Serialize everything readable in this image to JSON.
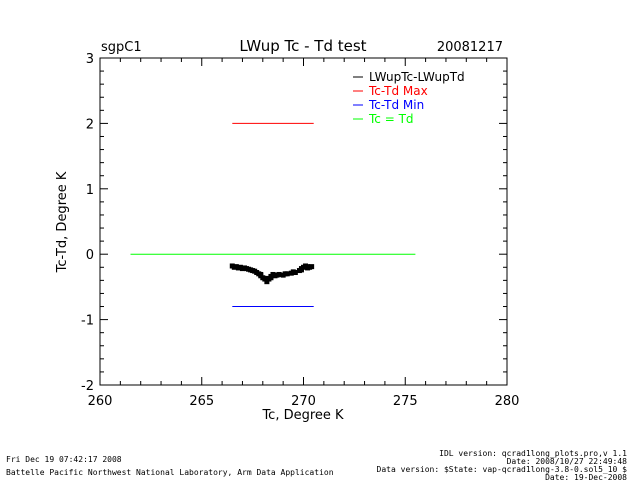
{
  "header": {
    "site": "sgpC1",
    "date": "20081217"
  },
  "footer": {
    "left_line1": "Fri Dec 19 07:42:17 2008",
    "left_line2": "Battelle Pacific Northwest National Laboratory, Arm Data Application",
    "right_line1": "IDL version: qcrad1long_plots.pro,v 1.1",
    "right_line2": "Date: 2008/10/27 22:49:48",
    "right_line3": "Data version: $State: vap-qcrad1long-3.8-0.sol5_10 $",
    "right_line4": "Date: 19-Dec-2008"
  },
  "colors": {
    "axes": "#000000",
    "data": "#000000",
    "max": "#ff0000",
    "min": "#0000ff",
    "equal": "#00ff00"
  },
  "chart_data": {
    "type": "scatter",
    "title": "LWup Tc - Td test",
    "xlabel": "Tc, Degree K",
    "ylabel": "Tc-Td, Degree K",
    "xlim": [
      260,
      280
    ],
    "ylim": [
      -2,
      3
    ],
    "x_ticks": [
      260,
      265,
      270,
      275,
      280
    ],
    "y_ticks": [
      -2,
      -1,
      0,
      1,
      2,
      3
    ],
    "legend": [
      {
        "label": "LWupTc-LWupTd",
        "color": "#000000"
      },
      {
        "label": "Tc-Td Max",
        "color": "#ff0000"
      },
      {
        "label": "Tc-Td Min",
        "color": "#0000ff"
      },
      {
        "label": "Tc = Td",
        "color": "#00ff00"
      }
    ],
    "series": [
      {
        "name": "Tc-Td Max",
        "type": "line",
        "color": "#ff0000",
        "x": [
          266.5,
          268.0,
          268.2,
          270.5
        ],
        "y": [
          2.0,
          2.0,
          2.0,
          2.0
        ]
      },
      {
        "name": "Tc-Td Min",
        "type": "line",
        "color": "#0000ff",
        "x": [
          266.5,
          268.0,
          268.2,
          270.5
        ],
        "y": [
          -0.8,
          -0.8,
          -0.8,
          -0.8
        ]
      },
      {
        "name": "Tc = Td",
        "type": "line",
        "color": "#00ff00",
        "x": [
          261.5,
          275.5
        ],
        "y": [
          0,
          0
        ]
      },
      {
        "name": "LWupTc-LWupTd",
        "type": "scatter",
        "color": "#000000",
        "x": [
          266.5,
          266.7,
          266.9,
          267.1,
          267.3,
          267.5,
          267.7,
          267.8,
          267.9,
          268.0,
          268.1,
          268.2,
          268.3,
          268.4,
          268.5,
          268.6,
          268.8,
          269.0,
          269.2,
          269.4,
          269.6,
          269.8,
          269.9,
          270.0,
          270.1,
          270.2,
          270.3,
          270.4,
          266.6,
          266.8,
          267.0,
          267.2,
          267.4,
          267.6,
          267.9,
          268.2,
          268.4,
          268.7,
          269.1,
          269.5,
          269.9,
          270.2
        ],
        "y": [
          -0.18,
          -0.19,
          -0.2,
          -0.21,
          -0.23,
          -0.25,
          -0.28,
          -0.3,
          -0.33,
          -0.36,
          -0.38,
          -0.42,
          -0.38,
          -0.34,
          -0.31,
          -0.33,
          -0.31,
          -0.32,
          -0.3,
          -0.29,
          -0.28,
          -0.25,
          -0.22,
          -0.2,
          -0.18,
          -0.19,
          -0.2,
          -0.19,
          -0.2,
          -0.21,
          -0.22,
          -0.22,
          -0.24,
          -0.26,
          -0.31,
          -0.37,
          -0.36,
          -0.32,
          -0.3,
          -0.27,
          -0.24,
          -0.21
        ]
      }
    ]
  }
}
